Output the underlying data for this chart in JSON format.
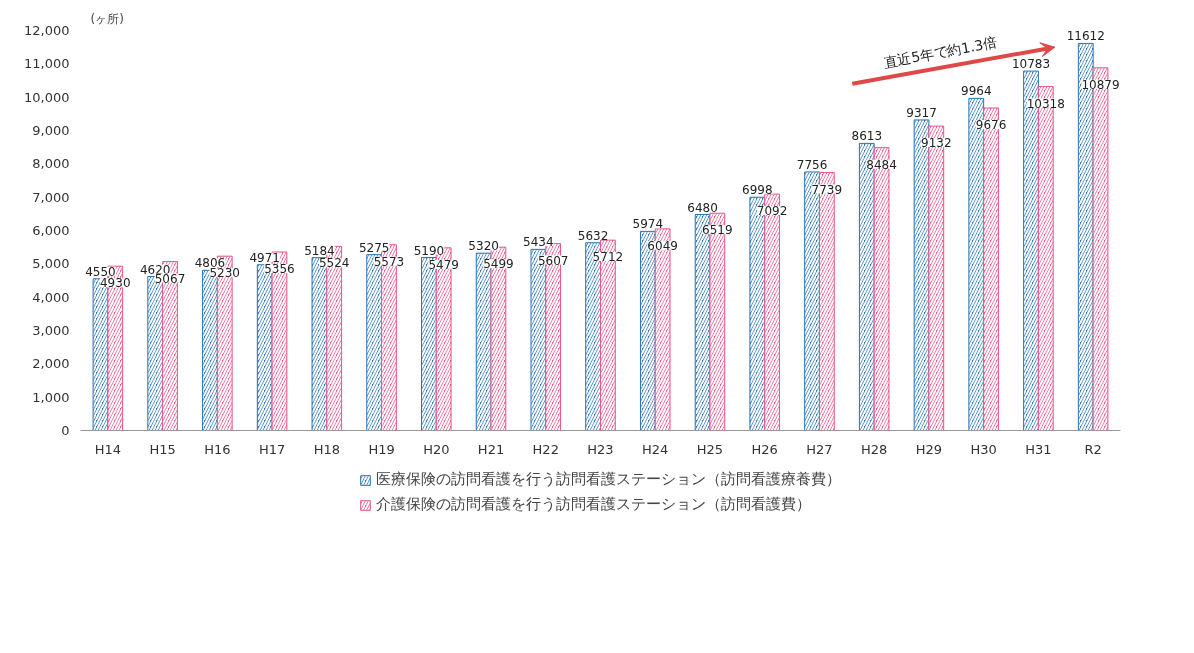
{
  "chart_data": {
    "type": "bar",
    "ylabel": "(ヶ所)",
    "categories": [
      "H14",
      "H15",
      "H16",
      "H17",
      "H18",
      "H19",
      "H20",
      "H21",
      "H22",
      "H23",
      "H24",
      "H25",
      "H26",
      "H27",
      "H28",
      "H29",
      "H30",
      "H31",
      "R2"
    ],
    "series": [
      {
        "name": "医療保険の訪問看護を行う訪問看護ステーション（訪問看護療養費）",
        "color": "#2e75b6",
        "values": [
          4550,
          4620,
          4806,
          4971,
          5184,
          5275,
          5190,
          5320,
          5434,
          5632,
          5974,
          6480,
          6998,
          7756,
          8613,
          9317,
          9964,
          10783,
          11612
        ]
      },
      {
        "name": "介護保険の訪問看護を行う訪問看護ステーション（訪問看護費）",
        "color": "#e8588c",
        "values": [
          4930,
          5067,
          5230,
          5356,
          5524,
          5573,
          5479,
          5499,
          5607,
          5712,
          6049,
          6519,
          7092,
          7739,
          8484,
          9132,
          9676,
          10318,
          10879
        ]
      }
    ],
    "ylim": [
      0,
      12000
    ],
    "yticks": [
      0,
      {
        "value": 1000,
        "label": "1,000"
      },
      {
        "value": 2000,
        "label": "2,000"
      },
      {
        "value": 3000,
        "label": "3,000"
      },
      {
        "value": 4000,
        "label": "4,000"
      },
      {
        "value": 5000,
        "label": "5,000"
      },
      {
        "value": 6000,
        "label": "6,000"
      },
      {
        "value": 7000,
        "label": "7,000"
      },
      {
        "value": 8000,
        "label": "8,000"
      },
      {
        "value": 9000,
        "label": "9,000"
      },
      {
        "value": 10000,
        "label": "10,000"
      },
      {
        "value": 11000,
        "label": "11,000"
      },
      {
        "value": 12000,
        "label": "12,000"
      }
    ],
    "data_labels": true,
    "legend": "bottom",
    "grid": false,
    "annotations": [
      "直近5年で約1.3倍"
    ]
  }
}
